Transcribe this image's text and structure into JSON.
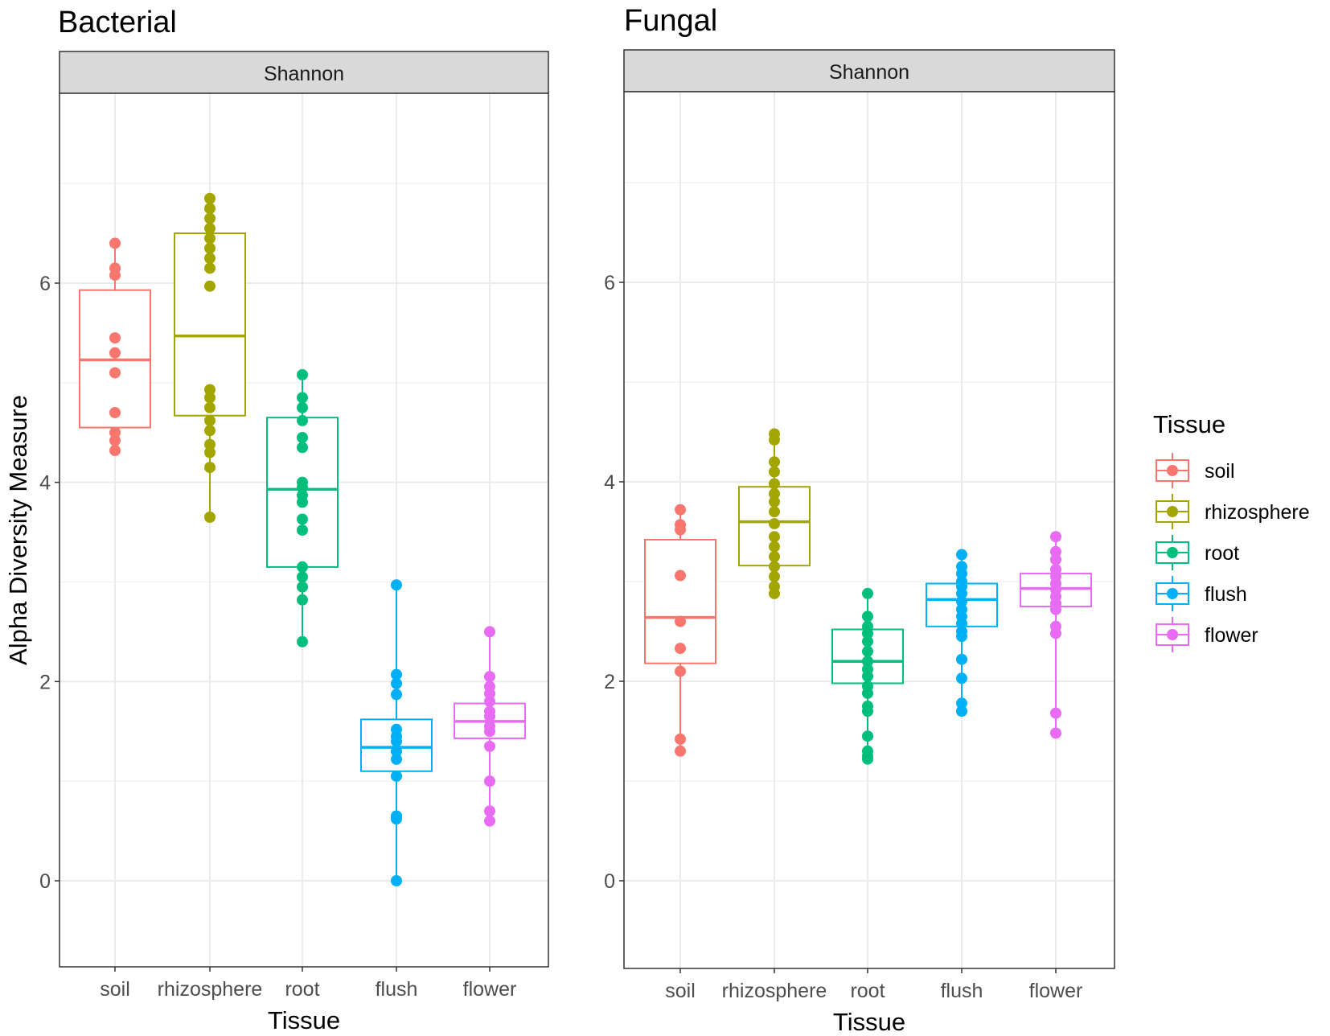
{
  "chart_data": [
    {
      "type": "box",
      "title": "Bacterial",
      "facet": "Shannon",
      "xlabel": "Tissue",
      "ylabel": "Alpha Diversity Measure",
      "ylim": [
        -0.9,
        7.9
      ],
      "yticks": [
        0,
        2,
        4,
        6
      ],
      "categories": [
        "soil",
        "rhizosphere",
        "root",
        "flush",
        "flower"
      ],
      "boxes": [
        {
          "category": "soil",
          "q1": 4.55,
          "median": 5.23,
          "q3": 5.93,
          "whisker_low": 4.32,
          "whisker_high": 6.4,
          "points": [
            6.4,
            6.15,
            6.08,
            5.45,
            5.3,
            5.1,
            4.7,
            4.5,
            4.42,
            4.32
          ]
        },
        {
          "category": "rhizosphere",
          "q1": 4.67,
          "median": 5.47,
          "q3": 6.5,
          "whisker_low": 3.65,
          "whisker_high": 6.85,
          "points": [
            6.85,
            6.75,
            6.65,
            6.55,
            6.45,
            6.35,
            6.25,
            6.15,
            5.97,
            4.93,
            4.85,
            4.75,
            4.62,
            4.52,
            4.38,
            4.3,
            4.15,
            3.65
          ]
        },
        {
          "category": "root",
          "q1": 3.15,
          "median": 3.93,
          "q3": 4.65,
          "whisker_low": 2.4,
          "whisker_high": 5.08,
          "points": [
            5.08,
            4.85,
            4.75,
            4.62,
            4.45,
            4.35,
            4.0,
            3.95,
            3.87,
            3.8,
            3.63,
            3.52,
            3.15,
            3.05,
            2.95,
            2.82,
            2.4
          ]
        },
        {
          "category": "flush",
          "q1": 1.1,
          "median": 1.34,
          "q3": 1.62,
          "whisker_low": 0.0,
          "whisker_high": 2.97,
          "points": [
            2.97,
            2.07,
            1.98,
            1.87,
            1.52,
            1.45,
            1.4,
            1.3,
            1.22,
            1.05,
            0.65,
            0.62,
            0.0
          ]
        },
        {
          "category": "flower",
          "q1": 1.43,
          "median": 1.6,
          "q3": 1.78,
          "whisker_low": 0.6,
          "whisker_high": 2.5,
          "points": [
            2.5,
            2.05,
            1.95,
            1.88,
            1.8,
            1.7,
            1.65,
            1.55,
            1.5,
            1.35,
            1.0,
            0.7,
            0.6
          ]
        }
      ]
    },
    {
      "type": "box",
      "title": "Fungal",
      "facet": "Shannon",
      "xlabel": "Tissue",
      "ylabel": "",
      "ylim": [
        -0.9,
        7.9
      ],
      "yticks": [
        0,
        2,
        4,
        6
      ],
      "categories": [
        "soil",
        "rhizosphere",
        "root",
        "flush",
        "flower"
      ],
      "boxes": [
        {
          "category": "soil",
          "q1": 2.18,
          "median": 2.64,
          "q3": 3.42,
          "whisker_low": 1.3,
          "whisker_high": 3.72,
          "points": [
            3.72,
            3.57,
            3.52,
            3.06,
            2.6,
            2.33,
            2.1,
            1.42,
            1.3
          ]
        },
        {
          "category": "rhizosphere",
          "q1": 3.16,
          "median": 3.6,
          "q3": 3.95,
          "whisker_low": 2.88,
          "whisker_high": 4.48,
          "points": [
            4.48,
            4.42,
            4.2,
            4.1,
            3.98,
            3.88,
            3.8,
            3.7,
            3.58,
            3.45,
            3.35,
            3.25,
            3.15,
            3.05,
            2.95,
            2.88
          ]
        },
        {
          "category": "root",
          "q1": 1.98,
          "median": 2.2,
          "q3": 2.52,
          "whisker_low": 1.22,
          "whisker_high": 2.88,
          "points": [
            2.88,
            2.65,
            2.55,
            2.48,
            2.4,
            2.3,
            2.2,
            2.12,
            2.05,
            1.95,
            1.88,
            1.75,
            1.7,
            1.45,
            1.3,
            1.25,
            1.22
          ]
        },
        {
          "category": "flush",
          "q1": 2.55,
          "median": 2.82,
          "q3": 2.98,
          "whisker_low": 1.7,
          "whisker_high": 3.27,
          "points": [
            3.27,
            3.15,
            3.08,
            3.0,
            2.95,
            2.88,
            2.8,
            2.72,
            2.65,
            2.58,
            2.5,
            2.45,
            2.22,
            2.03,
            1.78,
            1.7
          ]
        },
        {
          "category": "flower",
          "q1": 2.75,
          "median": 2.93,
          "q3": 3.08,
          "whisker_low": 1.48,
          "whisker_high": 3.45,
          "points": [
            3.45,
            3.3,
            3.22,
            3.12,
            3.05,
            2.98,
            2.92,
            2.85,
            2.78,
            2.72,
            2.55,
            2.48,
            1.68,
            1.48
          ]
        }
      ]
    }
  ],
  "legend": {
    "title": "Tissue",
    "items": [
      {
        "label": "soil",
        "color": "#F8766D"
      },
      {
        "label": "rhizosphere",
        "color": "#A3A500"
      },
      {
        "label": "root",
        "color": "#00BF7D"
      },
      {
        "label": "flush",
        "color": "#00B0F6"
      },
      {
        "label": "flower",
        "color": "#E76BF3"
      }
    ]
  }
}
